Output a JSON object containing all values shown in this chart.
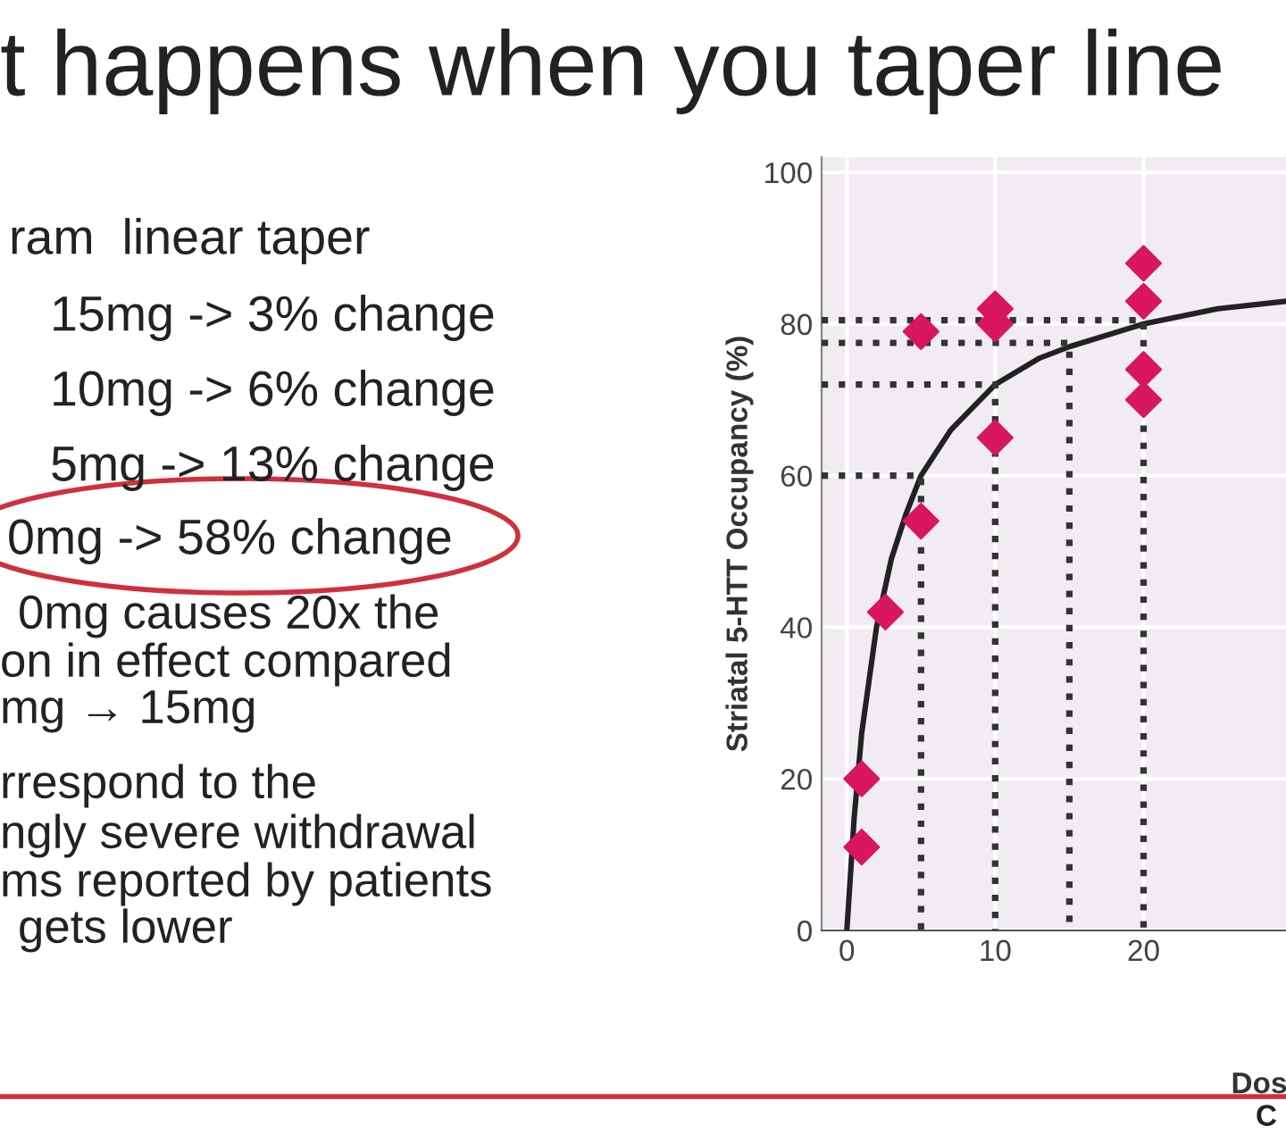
{
  "chart_data": {
    "type": "scatter",
    "title": "t happens when you taper line",
    "xlabel": "Dos",
    "ylabel": "Striatal 5-HTT Occupancy (%)",
    "xlim": [
      -1.7,
      29.6
    ],
    "xticks": [
      0,
      10,
      20
    ],
    "ylim": [
      0,
      102
    ],
    "yticks": [
      0,
      20,
      40,
      60,
      80,
      100
    ],
    "grid": true,
    "legend": false,
    "series": [
      {
        "color": "#d8175c",
        "marker": "diamond",
        "x": [
          1,
          1,
          2.6,
          5,
          5,
          10,
          10,
          10,
          20,
          20,
          20,
          20
        ],
        "values": [
          20,
          11,
          42,
          79,
          54,
          82,
          80,
          65,
          88,
          83,
          74,
          70
        ]
      },
      {
        "type": "line",
        "color": "#222222",
        "line_style": "solid",
        "marker": "none",
        "x": [
          0,
          0.5,
          1,
          2,
          3,
          4,
          5,
          7,
          10,
          13,
          15,
          20,
          25,
          29.6
        ],
        "values": [
          0,
          15,
          26,
          40,
          49,
          55,
          60,
          66,
          72,
          75.5,
          77,
          80,
          82,
          83
        ]
      },
      {
        "type": "line",
        "color": "#333333",
        "line_style": "dotted",
        "marker": "none",
        "x": [
          -1.7,
          5,
          5
        ],
        "values": [
          60,
          60,
          0
        ]
      },
      {
        "type": "line",
        "color": "#333333",
        "line_style": "dotted",
        "marker": "none",
        "x": [
          -1.7,
          10,
          10
        ],
        "values": [
          72,
          72,
          0
        ]
      },
      {
        "type": "line",
        "color": "#333333",
        "line_style": "dotted",
        "marker": "none",
        "x": [
          -1.7,
          15,
          15
        ],
        "values": [
          77.5,
          77.5,
          0
        ]
      },
      {
        "type": "line",
        "color": "#333333",
        "line_style": "dotted",
        "marker": "none",
        "x": [
          -1.7,
          20,
          20
        ],
        "values": [
          80.5,
          80.5,
          0
        ]
      }
    ],
    "annotations": [
      "ram  linear taper",
      "15mg -> 3% change",
      "10mg -> 6% change",
      "5mg -> 13% change",
      "0mg -> 58% change",
      "0mg causes 20x the",
      "on in effect compared",
      "mg → 15mg",
      "rrespond to the",
      "ngly severe withdrawal",
      "ms reported by patients",
      "gets lower",
      "C"
    ]
  }
}
